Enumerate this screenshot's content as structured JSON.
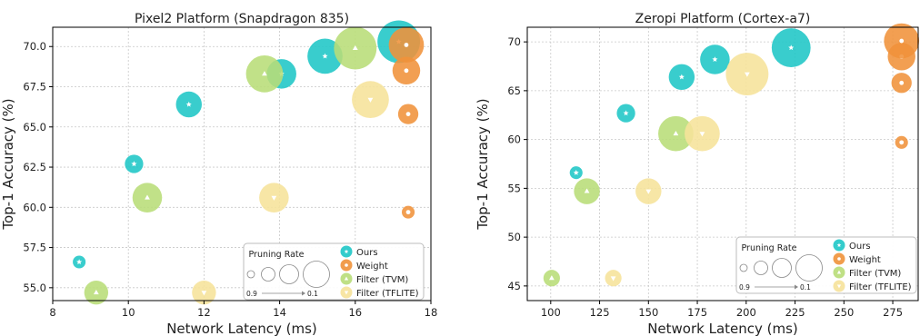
{
  "colors": {
    "ours": "#1ec6c6",
    "weight": "#f0923a",
    "filter_tvm": "#b8dd78",
    "filter_tflite": "#f6e29a",
    "grid": "#c8c8c8",
    "axis": "#000000"
  },
  "legend": {
    "pruning_title": "Pruning Rate",
    "pruning_low": "0.9",
    "pruning_high": "0.1",
    "entries": [
      "Ours",
      "Weight",
      "Filter (TVM)",
      "Filter (TFLITE)"
    ]
  },
  "chart_data": [
    {
      "type": "scatter",
      "title": "Pixel2 Platform (Snapdragon 835)",
      "xlabel": "Network Latency (ms)",
      "ylabel": "Top-1 Accuracy (%)",
      "xlim": [
        8,
        18
      ],
      "ylim": [
        54.2,
        71.2
      ],
      "xticks": [
        8,
        10,
        12,
        14,
        16,
        18
      ],
      "xtick_labels": [
        "8",
        "10",
        "12",
        "14",
        "16",
        "18"
      ],
      "yticks": [
        55.0,
        57.5,
        60.0,
        62.5,
        65.0,
        67.5,
        70.0
      ],
      "ytick_labels": [
        "55.0",
        "57.5",
        "60.0",
        "62.5",
        "65.0",
        "67.5",
        "70.0"
      ],
      "grid": true,
      "legend_position": "lower-right",
      "series": [
        {
          "name": "Ours",
          "marker": "star",
          "points": [
            {
              "x": 8.7,
              "y": 56.6,
              "size": 0.9
            },
            {
              "x": 10.15,
              "y": 62.7,
              "size": 0.75
            },
            {
              "x": 11.6,
              "y": 66.4,
              "size": 0.55
            },
            {
              "x": 14.05,
              "y": 68.3,
              "size": 0.45
            },
            {
              "x": 15.2,
              "y": 69.4,
              "size": 0.3
            },
            {
              "x": 17.15,
              "y": 70.3,
              "size": 0.1
            }
          ]
        },
        {
          "name": "Weight",
          "marker": "circle",
          "points": [
            {
              "x": 17.4,
              "y": 59.7,
              "size": 0.9
            },
            {
              "x": 17.4,
              "y": 65.8,
              "size": 0.7
            },
            {
              "x": 17.35,
              "y": 68.5,
              "size": 0.5
            },
            {
              "x": 17.35,
              "y": 70.1,
              "size": 0.3
            }
          ]
        },
        {
          "name": "Filter (TVM)",
          "marker": "triangle-up",
          "points": [
            {
              "x": 9.15,
              "y": 54.7,
              "size": 0.6
            },
            {
              "x": 10.5,
              "y": 60.6,
              "size": 0.45
            },
            {
              "x": 13.6,
              "y": 68.3,
              "size": 0.25
            },
            {
              "x": 16.0,
              "y": 69.9,
              "size": 0.1
            }
          ]
        },
        {
          "name": "Filter (TFLITE)",
          "marker": "triangle-down",
          "points": [
            {
              "x": 12.0,
              "y": 54.7,
              "size": 0.6
            },
            {
              "x": 13.85,
              "y": 60.6,
              "size": 0.45
            },
            {
              "x": 16.4,
              "y": 66.7,
              "size": 0.25
            }
          ]
        }
      ]
    },
    {
      "type": "scatter",
      "title": "Zeropi Platform (Cortex-a7)",
      "xlabel": "Network Latency (ms)",
      "ylabel": "Top-1 Accuracy (%)",
      "xlim": [
        88,
        288
      ],
      "ylim": [
        43.5,
        71.5
      ],
      "xticks": [
        100,
        125,
        150,
        175,
        200,
        225,
        250,
        275
      ],
      "xtick_labels": [
        "100",
        "125",
        "150",
        "175",
        "200",
        "225",
        "250",
        "275"
      ],
      "yticks": [
        45,
        50,
        55,
        60,
        65,
        70
      ],
      "ytick_labels": [
        "45",
        "50",
        "55",
        "60",
        "65",
        "70"
      ],
      "grid": true,
      "legend_position": "lower-right",
      "series": [
        {
          "name": "Ours",
          "marker": "star",
          "points": [
            {
              "x": 113,
              "y": 56.6,
              "size": 0.9
            },
            {
              "x": 138.5,
              "y": 62.7,
              "size": 0.75
            },
            {
              "x": 167,
              "y": 66.4,
              "size": 0.55
            },
            {
              "x": 184,
              "y": 68.2,
              "size": 0.45
            },
            {
              "x": 223,
              "y": 69.4,
              "size": 0.2
            }
          ]
        },
        {
          "name": "Weight",
          "marker": "circle",
          "points": [
            {
              "x": 279.5,
              "y": 59.7,
              "size": 0.9
            },
            {
              "x": 279.5,
              "y": 65.8,
              "size": 0.7
            },
            {
              "x": 279.5,
              "y": 68.5,
              "size": 0.5
            },
            {
              "x": 279.5,
              "y": 70.1,
              "size": 0.3
            }
          ]
        },
        {
          "name": "Filter (TVM)",
          "marker": "triangle-up",
          "points": [
            {
              "x": 100.5,
              "y": 45.8,
              "size": 0.8
            },
            {
              "x": 118.5,
              "y": 54.7,
              "size": 0.55
            },
            {
              "x": 164,
              "y": 60.6,
              "size": 0.3
            }
          ]
        },
        {
          "name": "Filter (TFLITE)",
          "marker": "triangle-down",
          "points": [
            {
              "x": 132,
              "y": 45.8,
              "size": 0.8
            },
            {
              "x": 150,
              "y": 54.7,
              "size": 0.55
            },
            {
              "x": 177.5,
              "y": 60.6,
              "size": 0.3
            },
            {
              "x": 200.5,
              "y": 66.7,
              "size": 0.1
            }
          ]
        }
      ]
    }
  ]
}
